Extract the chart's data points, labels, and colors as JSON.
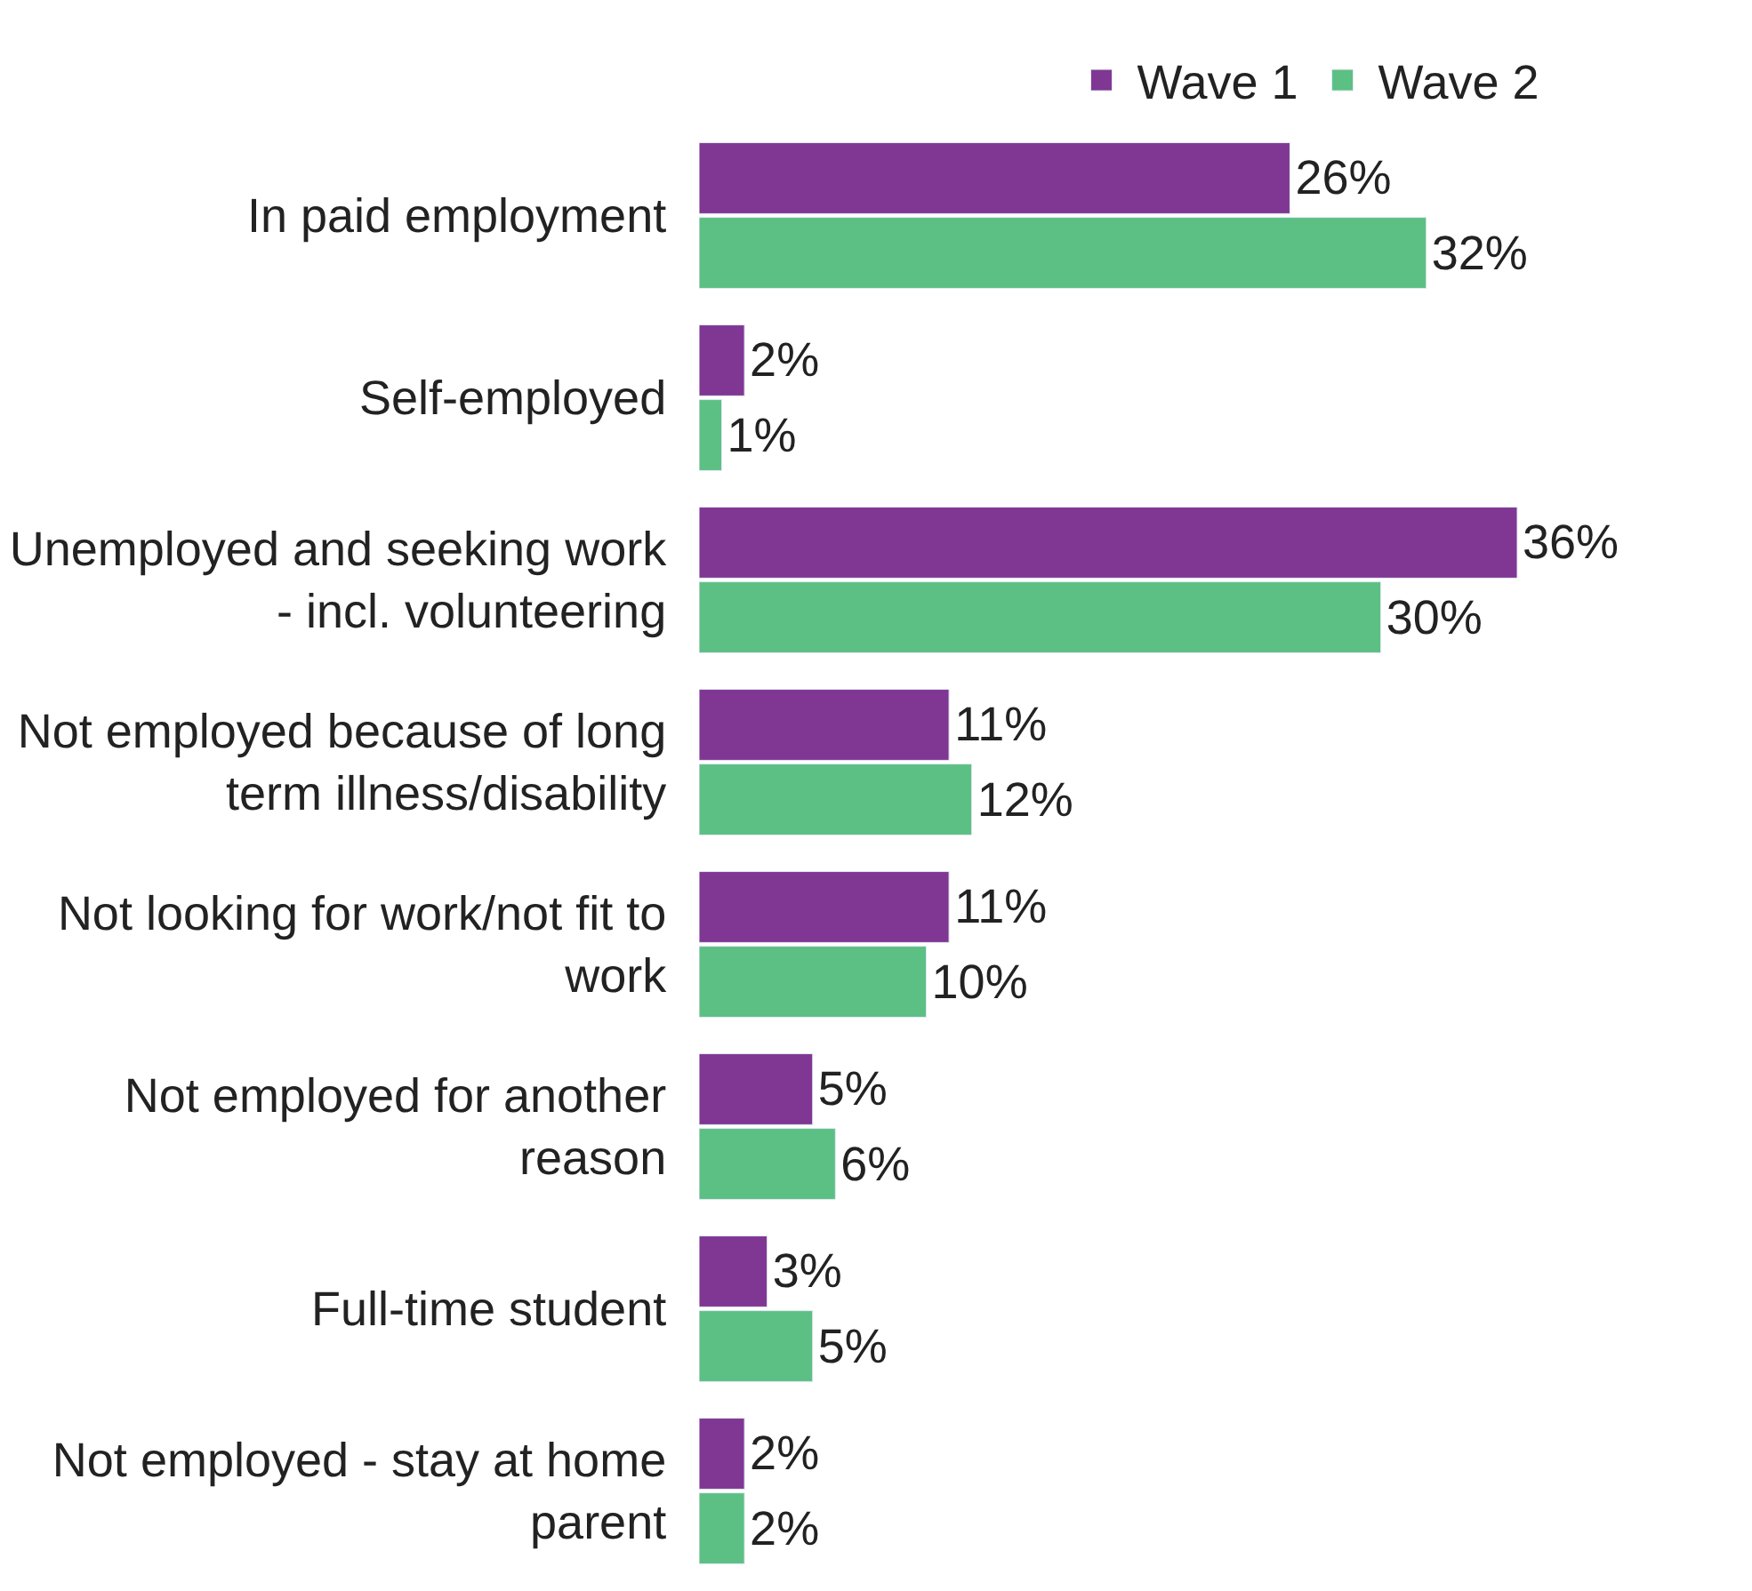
{
  "chart_data": {
    "type": "bar",
    "orientation": "horizontal",
    "legend": "top",
    "tick_labels": "y",
    "categories": [
      "In paid employment",
      "Self-employed",
      "Unemployed and seeking work\n- incl. volunteering",
      "Not employed because of long\nterm illness/disability",
      "Not looking for work/not fit to\nwork",
      "Not employed for another\nreason",
      "Full-time student",
      "Not employed - stay at home\nparent"
    ],
    "series": [
      {
        "name": "Wave 1",
        "color": "#7f3793",
        "values": [
          26,
          2,
          36,
          11,
          11,
          5,
          3,
          2
        ],
        "value_labels": [
          "26%",
          "2%",
          "36%",
          "11%",
          "11%",
          "5%",
          "3%",
          "2%"
        ]
      },
      {
        "name": "Wave 2",
        "color": "#5cbf84",
        "values": [
          32,
          1,
          30,
          12,
          10,
          6,
          5,
          2
        ],
        "value_labels": [
          "32%",
          "1%",
          "30%",
          "12%",
          "10%",
          "6%",
          "5%",
          "2%"
        ]
      }
    ]
  }
}
